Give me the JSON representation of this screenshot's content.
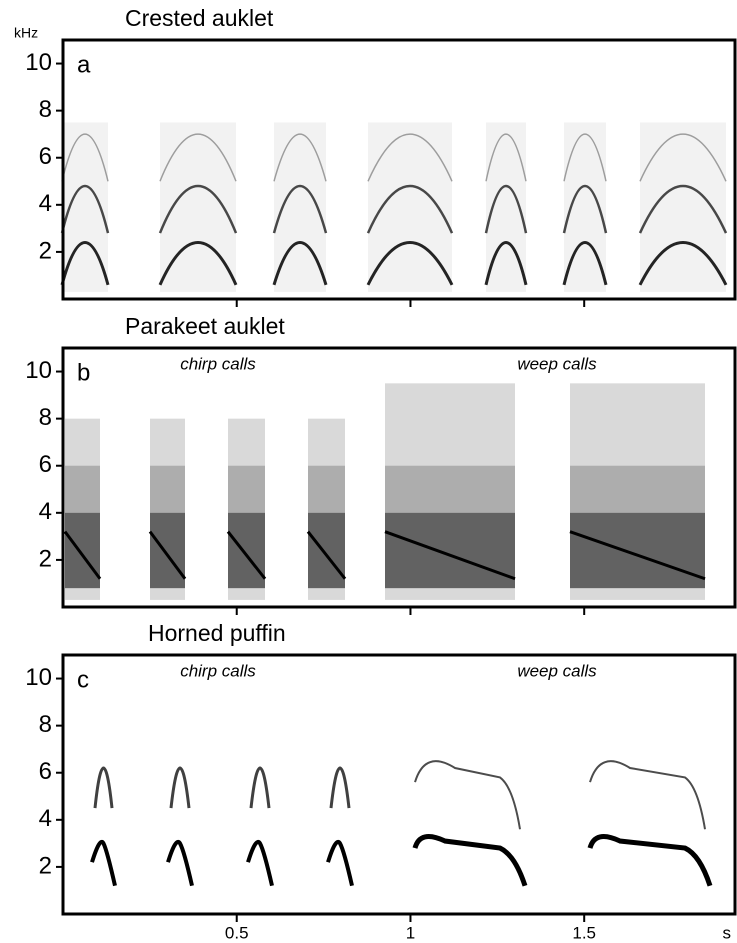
{
  "chart_data": [
    {
      "type": "spectrogram",
      "title": "Crested auklet",
      "panel_label": "a",
      "y_unit": "kHz",
      "ylim": [
        0,
        11
      ],
      "yticks": [
        2,
        4,
        6,
        8,
        10
      ],
      "xlim": [
        0,
        1.934
      ],
      "xticks": [
        0.5,
        1,
        1.5
      ]
    },
    {
      "type": "spectrogram",
      "title": "Parakeet auklet",
      "panel_label": "b",
      "annotations": [
        "chirp calls",
        "weep calls"
      ],
      "ylim": [
        0,
        11
      ],
      "yticks": [
        2,
        4,
        6,
        8,
        10
      ],
      "xlim": [
        0,
        1.934
      ],
      "xticks": [
        0.5,
        1,
        1.5
      ]
    },
    {
      "type": "spectrogram",
      "title": "Horned puffin",
      "panel_label": "c",
      "annotations": [
        "chirp calls",
        "weep calls"
      ],
      "x_unit": "s",
      "ylim": [
        0,
        11
      ],
      "yticks": [
        2,
        4,
        6,
        8,
        10
      ],
      "xlim": [
        0,
        1.934
      ],
      "xticks": [
        0.5,
        1,
        1.5
      ]
    }
  ]
}
